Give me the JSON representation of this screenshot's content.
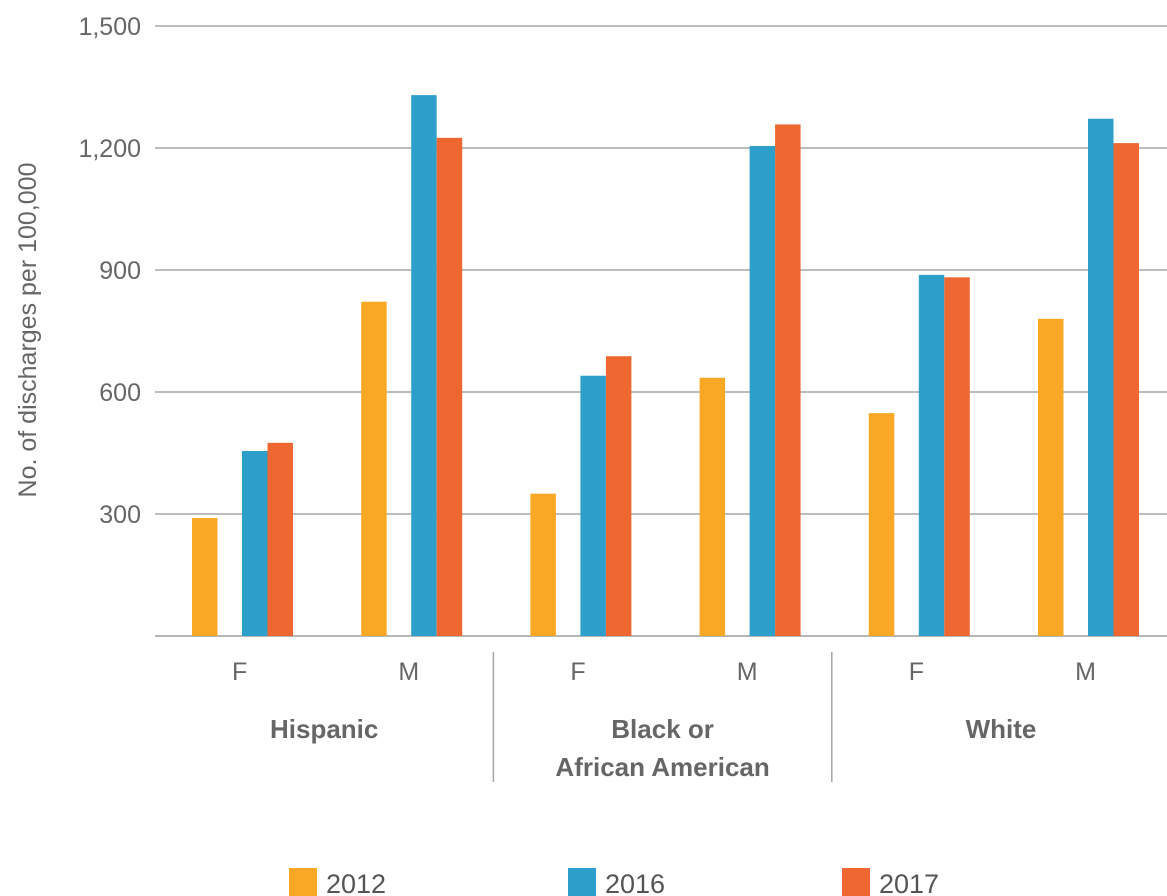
{
  "chart_data": {
    "type": "bar",
    "ylabel": "No. of discharges per 100,000",
    "ylim": [
      0,
      1500
    ],
    "yticks": [
      300,
      600,
      900,
      1200,
      1500
    ],
    "ytick_labels": [
      "300",
      "600",
      "900",
      "1,200",
      "1,500"
    ],
    "grid": true,
    "legend_position": "bottom",
    "groups": [
      {
        "name": "Hispanic",
        "lines": [
          "Hispanic"
        ]
      },
      {
        "name": "Black or African American",
        "lines": [
          "Black or",
          "African American"
        ]
      },
      {
        "name": "White",
        "lines": [
          "White"
        ]
      }
    ],
    "categories": [
      "F",
      "M",
      "F",
      "M",
      "F",
      "M"
    ],
    "series": [
      {
        "name": "2012",
        "color": "#F9A825",
        "values": [
          290,
          822,
          350,
          635,
          548,
          780
        ]
      },
      {
        "name": "2016",
        "color": "#2E9FCB",
        "values": [
          455,
          1330,
          640,
          1205,
          888,
          1272
        ]
      },
      {
        "name": "2017",
        "color": "#EF6730",
        "values": [
          475,
          1225,
          688,
          1258,
          882,
          1212
        ]
      }
    ]
  }
}
